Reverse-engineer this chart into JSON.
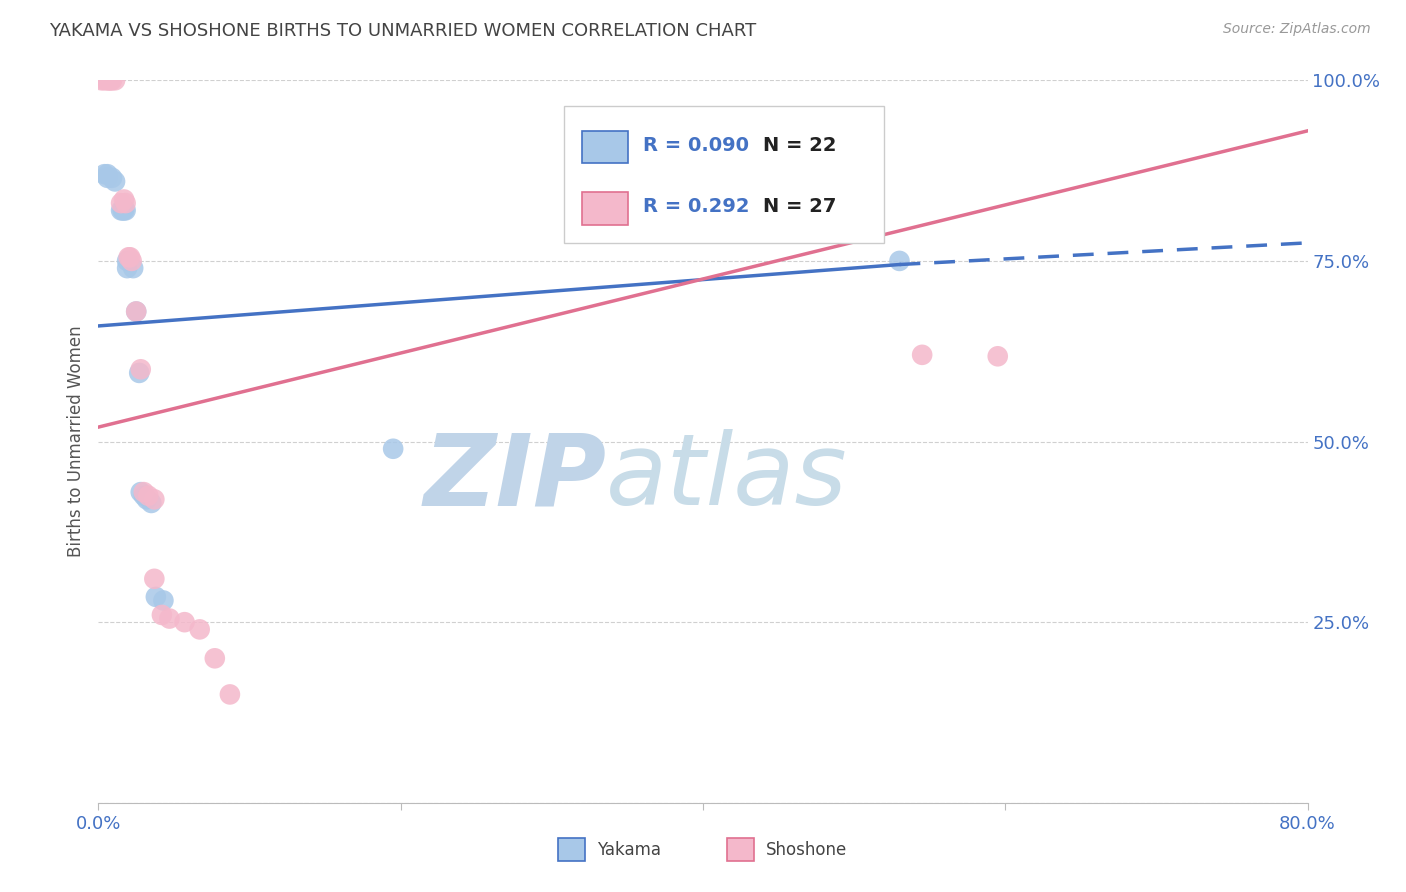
{
  "title": "YAKAMA VS SHOSHONE BIRTHS TO UNMARRIED WOMEN CORRELATION CHART",
  "source": "Source: ZipAtlas.com",
  "ylabel": "Births to Unmarried Women",
  "yakama_R": 0.09,
  "yakama_N": 22,
  "shoshone_R": 0.292,
  "shoshone_N": 27,
  "yakama_color": "#a8c8e8",
  "shoshone_color": "#f4b8cb",
  "yakama_line_color": "#4472c4",
  "shoshone_line_color": "#e07090",
  "title_color": "#444444",
  "axis_label_color": "#4472c4",
  "source_color": "#999999",
  "background_color": "#ffffff",
  "grid_color": "#d0d0d0",
  "watermark_zip_color": "#c0d4e8",
  "watermark_atlas_color": "#c8dce8",
  "xlim": [
    0.0,
    0.8
  ],
  "ylim": [
    0.0,
    1.0
  ],
  "yakama_points": [
    [
      0.004,
      0.87
    ],
    [
      0.006,
      0.87
    ],
    [
      0.006,
      0.865
    ],
    [
      0.009,
      0.865
    ],
    [
      0.011,
      0.86
    ],
    [
      0.015,
      0.82
    ],
    [
      0.016,
      0.82
    ],
    [
      0.017,
      0.82
    ],
    [
      0.018,
      0.82
    ],
    [
      0.019,
      0.75
    ],
    [
      0.019,
      0.74
    ],
    [
      0.023,
      0.74
    ],
    [
      0.025,
      0.68
    ],
    [
      0.027,
      0.595
    ],
    [
      0.028,
      0.43
    ],
    [
      0.03,
      0.425
    ],
    [
      0.032,
      0.42
    ],
    [
      0.035,
      0.415
    ],
    [
      0.038,
      0.285
    ],
    [
      0.043,
      0.28
    ],
    [
      0.195,
      0.49
    ],
    [
      0.53,
      0.75
    ]
  ],
  "shoshone_points": [
    [
      0.002,
      1.0
    ],
    [
      0.004,
      1.0
    ],
    [
      0.006,
      1.0
    ],
    [
      0.007,
      1.0
    ],
    [
      0.008,
      1.0
    ],
    [
      0.009,
      1.0
    ],
    [
      0.011,
      1.0
    ],
    [
      0.015,
      0.83
    ],
    [
      0.017,
      0.835
    ],
    [
      0.018,
      0.83
    ],
    [
      0.02,
      0.755
    ],
    [
      0.021,
      0.755
    ],
    [
      0.022,
      0.75
    ],
    [
      0.025,
      0.68
    ],
    [
      0.028,
      0.6
    ],
    [
      0.03,
      0.43
    ],
    [
      0.033,
      0.425
    ],
    [
      0.037,
      0.42
    ],
    [
      0.037,
      0.31
    ],
    [
      0.042,
      0.26
    ],
    [
      0.047,
      0.255
    ],
    [
      0.057,
      0.25
    ],
    [
      0.067,
      0.24
    ],
    [
      0.077,
      0.2
    ],
    [
      0.087,
      0.15
    ],
    [
      0.545,
      0.62
    ],
    [
      0.595,
      0.618
    ]
  ],
  "yakama_line": {
    "x0": 0.0,
    "y0": 0.66,
    "x1": 0.53,
    "y1": 0.745,
    "x1_dash": 0.8,
    "y1_dash": 0.775
  },
  "shoshone_line": {
    "x0": 0.0,
    "y0": 0.52,
    "x1": 0.8,
    "y1": 0.93
  }
}
